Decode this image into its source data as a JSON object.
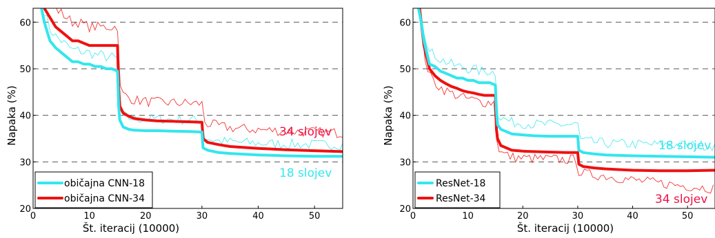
{
  "chart_data": [
    {
      "type": "line",
      "xlabel": "Št. iteracij (10000)",
      "ylabel": "Napaka (%)",
      "xlim": [
        0,
        55
      ],
      "ylim": [
        20,
        63
      ],
      "xticks": [
        0,
        10,
        20,
        30,
        40,
        50
      ],
      "yticks": [
        20,
        30,
        40,
        50,
        60
      ],
      "grid": "horizontal dashed",
      "legend": "bottom-left",
      "series": [
        {
          "name": "običajna CNN-18",
          "color": "#33e6ee",
          "width": 4,
          "x": [
            1.5,
            2,
            3,
            4,
            5,
            6,
            7,
            8,
            9,
            10,
            11,
            12,
            13,
            14,
            15,
            15.2,
            15.4,
            16,
            17,
            18,
            20,
            22,
            25,
            28,
            30,
            30.2,
            31,
            33,
            35,
            40,
            45,
            50,
            55
          ],
          "y": [
            63,
            60,
            56,
            54.5,
            53.5,
            52.5,
            51.5,
            51.5,
            51,
            51,
            50.5,
            50.5,
            50,
            50,
            49.5,
            42,
            39,
            37.5,
            37,
            36.8,
            36.7,
            36.7,
            36.6,
            36.5,
            36.4,
            33,
            32.5,
            32,
            31.8,
            31.5,
            31.3,
            31.2,
            31.2
          ]
        },
        {
          "name": "običajna CNN-34",
          "color": "#ee1111",
          "width": 4,
          "x": [
            2,
            3,
            4,
            5,
            6,
            7,
            8,
            9,
            10,
            11,
            12,
            13,
            14,
            15,
            15.2,
            15.4,
            16,
            17,
            18,
            20,
            22,
            25,
            28,
            30,
            30.2,
            31,
            33,
            35,
            40,
            45,
            50,
            55
          ],
          "y": [
            63,
            61,
            59,
            58,
            57,
            56,
            56,
            55.5,
            55,
            55,
            55,
            55,
            55,
            55,
            46,
            42,
            40.5,
            39.8,
            39.3,
            39,
            38.8,
            38.7,
            38.6,
            38.5,
            35,
            34.2,
            33.7,
            33.3,
            32.9,
            32.6,
            32.4,
            32.2
          ]
        }
      ],
      "annotations": [
        {
          "text": "34 slojev",
          "color": "#ee1144"
        },
        {
          "text": "18 slojev",
          "color": "#33e6ee"
        }
      ]
    },
    {
      "type": "line",
      "xlabel": "Št. iteracij (10000)",
      "ylabel": "Napaka (%)",
      "xlim": [
        0,
        55
      ],
      "ylim": [
        20,
        63
      ],
      "xticks": [
        0,
        10,
        20,
        30,
        40,
        50
      ],
      "yticks": [
        20,
        30,
        40,
        50,
        60
      ],
      "grid": "horizontal dashed",
      "legend": "bottom-left",
      "series": [
        {
          "name": "ResNet-18",
          "color": "#33e6ee",
          "width": 4,
          "x": [
            1,
            1.5,
            2,
            3,
            4,
            5,
            6,
            7,
            8,
            9,
            10,
            11,
            12,
            13,
            14,
            15,
            15.2,
            15.4,
            16,
            17,
            18,
            20,
            22,
            25,
            28,
            30,
            30.2,
            31,
            33,
            35,
            40,
            45,
            50,
            55
          ],
          "y": [
            63,
            60,
            56,
            51,
            50.5,
            49.5,
            49,
            48.5,
            48,
            48,
            47.5,
            47.5,
            47,
            47,
            47,
            46.5,
            41,
            38,
            37,
            36.5,
            36,
            35.8,
            35.6,
            35.5,
            35.5,
            35.5,
            32.5,
            32,
            31.7,
            31.5,
            31.3,
            31.2,
            31.1,
            31
          ]
        },
        {
          "name": "ResNet-34",
          "color": "#ee1111",
          "width": 4,
          "x": [
            1.2,
            1.6,
            2,
            3,
            4,
            5,
            6,
            7,
            8,
            9,
            10,
            11,
            12,
            13,
            14,
            15,
            15.2,
            15.4,
            16,
            17,
            18,
            20,
            22,
            25,
            28,
            30,
            30.2,
            31,
            33,
            35,
            40,
            45,
            50,
            55
          ],
          "y": [
            63,
            59,
            55,
            50,
            48.5,
            47.5,
            46.8,
            46.2,
            45.8,
            45.3,
            45,
            44.8,
            44.5,
            44.3,
            44.3,
            44.3,
            37,
            35,
            33.5,
            33,
            32.5,
            32.3,
            32.2,
            32.1,
            32,
            32,
            29.5,
            29,
            28.7,
            28.5,
            28.2,
            28.1,
            28.1,
            28.2
          ]
        }
      ],
      "annotations": [
        {
          "text": "18 slojev",
          "color": "#33e6ee"
        },
        {
          "text": "34 slojev",
          "color": "#ee1144"
        }
      ]
    }
  ]
}
